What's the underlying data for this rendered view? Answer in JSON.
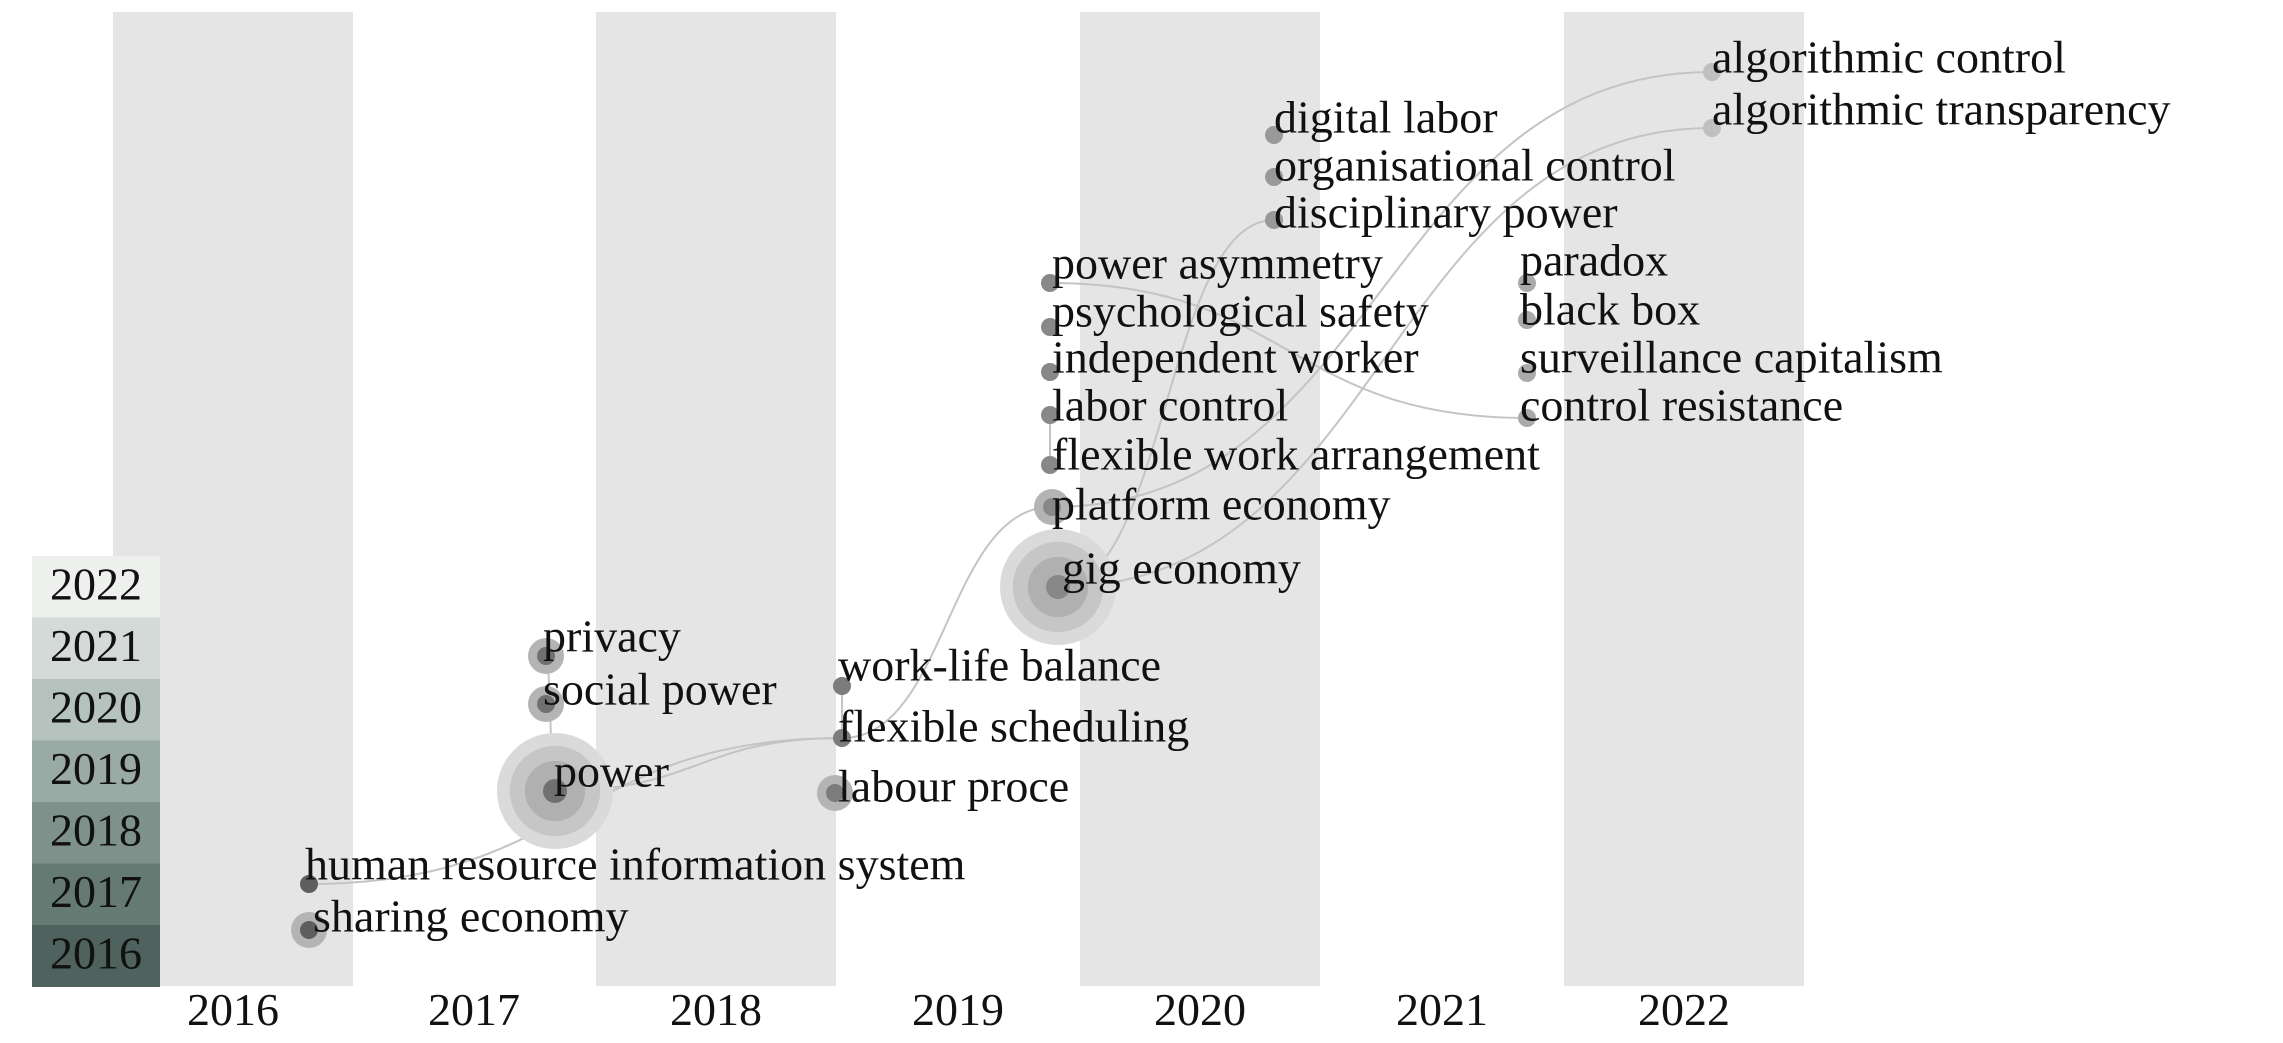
{
  "chart_data": {
    "type": "scatter",
    "title": "",
    "xlabel": "",
    "ylabel": "",
    "x_axis_years": [
      "2016",
      "2017",
      "2018",
      "2019",
      "2020",
      "2021",
      "2022"
    ],
    "shaded_columns": [
      "2016",
      "2018",
      "2020",
      "2022"
    ],
    "legend": {
      "placement": "bottom-left",
      "entries": [
        "2022",
        "2021",
        "2020",
        "2019",
        "2018",
        "2017",
        "2016"
      ],
      "colors": [
        "#eef0ee",
        "#d3dad7",
        "#b6c2bd",
        "#9aaaa4",
        "#7f918b",
        "#667a74",
        "#4f625d"
      ]
    },
    "keywords": [
      {
        "label": "human resource information system",
        "year": 2016,
        "size": 1
      },
      {
        "label": "sharing economy",
        "year": 2016,
        "size": 2
      },
      {
        "label": "privacy",
        "year": 2017,
        "size": 2
      },
      {
        "label": "social power",
        "year": 2017,
        "size": 2
      },
      {
        "label": "power",
        "year": 2017,
        "size": 6
      },
      {
        "label": "work-life balance",
        "year": 2018,
        "size": 1
      },
      {
        "label": "flexible scheduling",
        "year": 2018,
        "size": 1
      },
      {
        "label": "labour proce",
        "year": 2018,
        "size": 2
      },
      {
        "label": "power asymmetry",
        "year": 2019,
        "size": 1
      },
      {
        "label": "psychological safety",
        "year": 2019,
        "size": 1
      },
      {
        "label": "independent worker",
        "year": 2019,
        "size": 1
      },
      {
        "label": "labor control",
        "year": 2019,
        "size": 1
      },
      {
        "label": "flexible work arrangement",
        "year": 2019,
        "size": 1
      },
      {
        "label": "platform economy",
        "year": 2019,
        "size": 2
      },
      {
        "label": "gig economy",
        "year": 2019,
        "size": 7
      },
      {
        "label": "digital labor",
        "year": 2020,
        "size": 1
      },
      {
        "label": "organisational control",
        "year": 2020,
        "size": 1
      },
      {
        "label": "disciplinary power",
        "year": 2020,
        "size": 1
      },
      {
        "label": "paradox",
        "year": 2021,
        "size": 1
      },
      {
        "label": "black box",
        "year": 2021,
        "size": 1
      },
      {
        "label": "surveillance capitalism",
        "year": 2021,
        "size": 1
      },
      {
        "label": "control resistance",
        "year": 2021,
        "size": 1
      },
      {
        "label": "algorithmic control",
        "year": 2022,
        "size": 1
      },
      {
        "label": "algorithmic transparency",
        "year": 2022,
        "size": 1
      }
    ],
    "links": [
      [
        "human resource information system",
        "flexible scheduling"
      ],
      [
        "power",
        "flexible scheduling"
      ],
      [
        "privacy",
        "power"
      ],
      [
        "work-life balance",
        "flexible scheduling"
      ],
      [
        "flexible scheduling",
        "platform economy"
      ],
      [
        "labor control",
        "flexible work arrangement"
      ],
      [
        "gig economy",
        "algorithmic transparency"
      ],
      [
        "platform economy",
        "algorithmic control"
      ],
      [
        "power asymmetry",
        "control resistance"
      ],
      [
        "gig economy",
        "disciplinary power"
      ]
    ]
  }
}
